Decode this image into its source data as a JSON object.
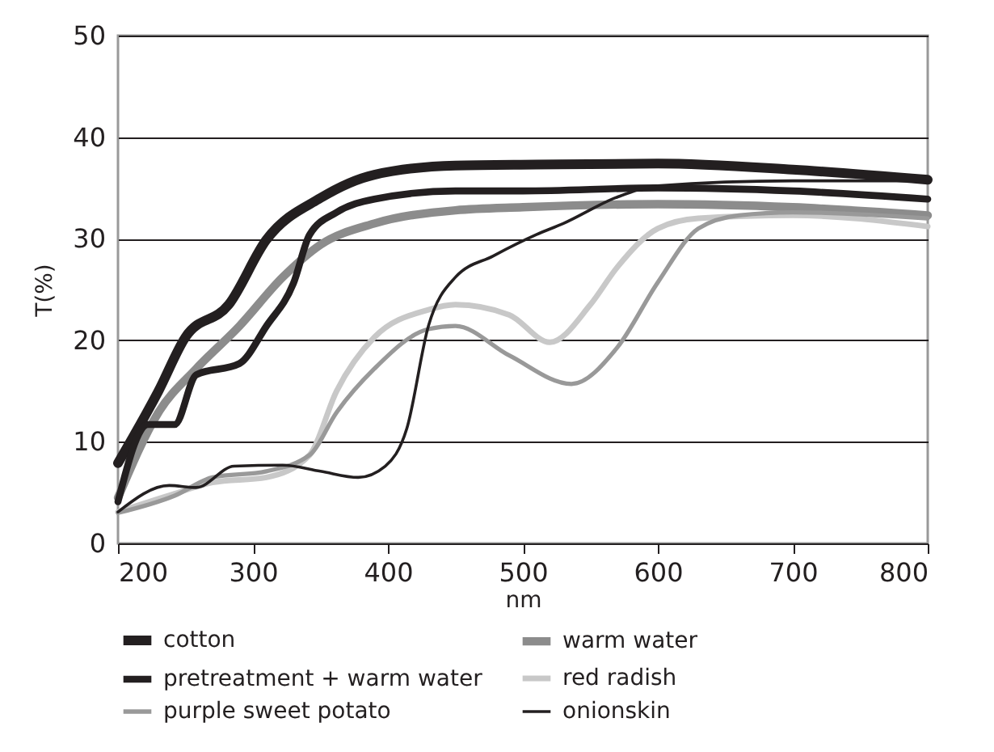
{
  "chart_data": {
    "type": "line",
    "xlabel": "nm",
    "ylabel": "T(%)",
    "xlim": [
      200,
      800
    ],
    "xticks": [
      200,
      300,
      400,
      500,
      600,
      700,
      800
    ],
    "ylim": [
      0,
      50
    ],
    "yticks": [
      0,
      10,
      20,
      30,
      40,
      50
    ],
    "grid": "y",
    "legend": "bottom",
    "line_style": "solid",
    "marker": "none",
    "series": [
      {
        "name": "cotton",
        "color": "#231f20",
        "x": [
          200,
          230,
          250,
          282,
          310,
          350,
          390,
          450,
          510,
          600,
          700,
          800
        ],
        "values": [
          7.9,
          15,
          20.3,
          23.5,
          29.9,
          34,
          36.3,
          37.2,
          37.3,
          37.4,
          36.8,
          35.8
        ]
      },
      {
        "name": "warm water",
        "color": "#8c8c8c",
        "x": [
          200,
          230,
          258,
          290,
          322,
          350,
          390,
          450,
          500,
          600,
          700,
          800
        ],
        "values": [
          4.5,
          12.9,
          17.2,
          21.4,
          26.2,
          29.4,
          31.5,
          32.8,
          33.1,
          33.4,
          33.1,
          32.3
        ]
      },
      {
        "name": "pretreatment + warm water",
        "color": "#231f20",
        "x": [
          200,
          222,
          242,
          258,
          290,
          310,
          330,
          342,
          362,
          390,
          450,
          500,
          600,
          700,
          800
        ],
        "values": [
          4.1,
          11.7,
          11.7,
          16.6,
          17.7,
          21.4,
          25.6,
          30.4,
          32.6,
          33.9,
          34.7,
          34.7,
          35,
          34.7,
          33.9
        ]
      },
      {
        "name": "red radish",
        "color": "#c8c8c8",
        "x": [
          200,
          242,
          270,
          310,
          342,
          362,
          390,
          430,
          450,
          490,
          520,
          550,
          570,
          600,
          630,
          700,
          800
        ],
        "values": [
          3.1,
          4.9,
          6,
          6.5,
          8.7,
          15,
          20.3,
          23,
          23.5,
          22.5,
          19.8,
          23.5,
          27.2,
          31,
          32,
          32.3,
          31.2
        ]
      },
      {
        "name": "purple sweet potato",
        "color": "#999999",
        "x": [
          200,
          242,
          270,
          310,
          342,
          362,
          390,
          430,
          450,
          490,
          536,
          570,
          600,
          630,
          660,
          700,
          800
        ],
        "values": [
          3,
          4.7,
          6.5,
          7.1,
          8.7,
          12.9,
          17.2,
          21.1,
          21.4,
          18.5,
          15.7,
          19.3,
          25.7,
          31,
          32.3,
          32.6,
          32
        ]
      },
      {
        "name": "onionskin",
        "color": "#231f20",
        "x": [
          200,
          238,
          258,
          286,
          322,
          350,
          378,
          398,
          414,
          430,
          450,
          478,
          510,
          530,
          570,
          600,
          700,
          800
        ],
        "values": [
          3.1,
          5.7,
          5.5,
          7.6,
          7.7,
          7.1,
          6.5,
          7.6,
          11.3,
          21.4,
          26.2,
          28.3,
          30.4,
          31.5,
          34.1,
          35.2,
          35.7,
          35.7
        ]
      }
    ]
  }
}
